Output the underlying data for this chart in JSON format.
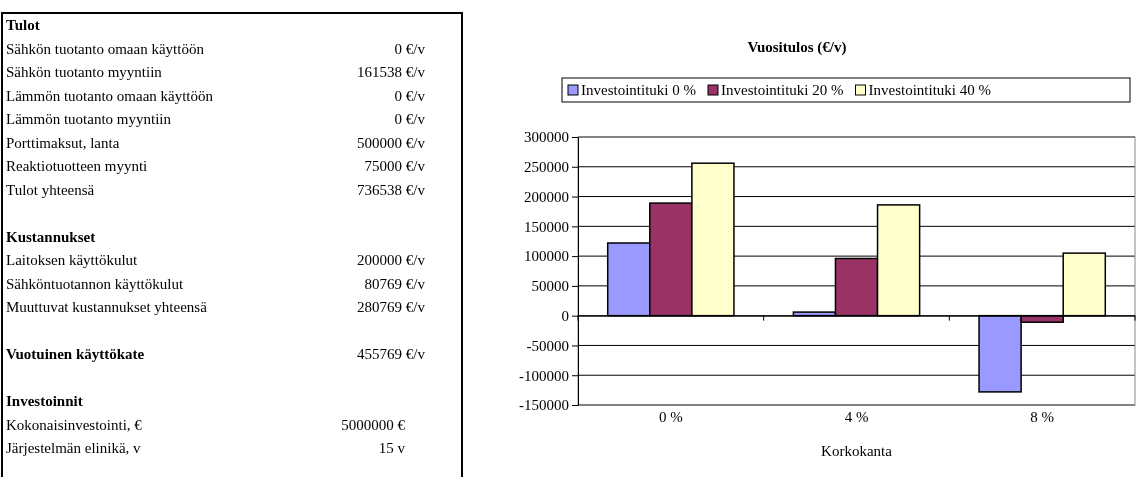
{
  "chart_data": [
    {
      "type": "other",
      "annotations": [
        "Tulot",
        "Sähkön tuotanto omaan käyttöön\t0 €/v",
        "Sähkön tuotanto myyntiin\t161538 €/v",
        "Lämmön tuotanto omaan käyttöön\t0 €/v",
        "Lämmön tuotanto myyntiin\t0 €/v",
        "Porttimaksut, lanta\t500000 €/v",
        "Reaktiotuotteen myynti\t75000 €/v",
        "Tulot yhteensä\t736538 €/v",
        "Kustannukset",
        "Laitoksen käyttökulut\t200000 €/v",
        "Sähköntuotannon käyttökulut\t80769 €/v",
        "Muuttuvat kustannukset yhteensä\t280769 €/v",
        "Vuotuinen käyttökate\t455769 €/v",
        "Investoinnit",
        "Kokonaisinvestointi, €\t5000000 €",
        "Järjestelmän elinikä, v\t15 v"
      ]
    },
    {
      "type": "bar",
      "title": "Vuositulos (€/v)",
      "xlabel": "Korkokanta",
      "categories": [
        "0 %",
        "4 %",
        "8 %"
      ],
      "series": [
        {
          "name": "Investointituki 0 %",
          "color": "#9999ff",
          "values": [
            122000,
            6000,
            -128000
          ]
        },
        {
          "name": "Investointituki 20 %",
          "color": "#993366",
          "values": [
            189000,
            96000,
            -11000
          ]
        },
        {
          "name": "Investointituki 40 %",
          "color": "#ffffcc",
          "values": [
            256000,
            186000,
            105000
          ]
        }
      ],
      "ylim": [
        -150000,
        300000
      ],
      "yticks": [
        -150000,
        -100000,
        -50000,
        0,
        50000,
        100000,
        150000,
        200000,
        250000,
        300000
      ],
      "grid": "y",
      "legend": "top"
    }
  ]
}
